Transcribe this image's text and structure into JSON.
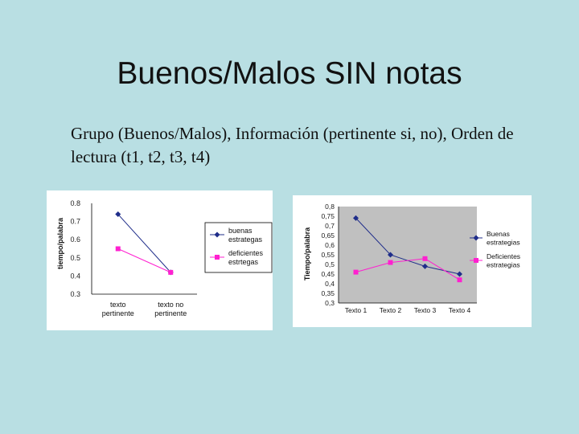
{
  "slide": {
    "title": "Buenos/Malos SIN notas",
    "subtitle": "Grupo (Buenos/Malos), Información (pertinente si, no), Orden de lectura (t1, t2, t3, t4)"
  },
  "colors": {
    "background": "#b9dfe3",
    "plot_area": "#c0c0c0",
    "series1": "#1f2d8a",
    "series2": "#ff20d0"
  },
  "chart_data": [
    {
      "type": "line",
      "title": "",
      "xlabel": "",
      "ylabel": "tiempo/palabra",
      "categories": [
        "texto pertinente",
        "texto no pertinente"
      ],
      "category_lines": [
        [
          "texto",
          "pertinente"
        ],
        [
          "texto no",
          "pertinente"
        ]
      ],
      "ylim": [
        0.3,
        0.8
      ],
      "yticks": [
        "0.3",
        "0.4",
        "0.5",
        "0.6",
        "0.7",
        "0.8"
      ],
      "grid": false,
      "legend_position": "right",
      "series": [
        {
          "name": "buenas estrategas",
          "name_lines": [
            "buenas",
            "estrategas"
          ],
          "values": [
            0.74,
            0.42
          ],
          "color": "#1f2d8a",
          "marker": "diamond"
        },
        {
          "name": "deficientes estrtegas",
          "name_lines": [
            "deficientes",
            "estrtegas"
          ],
          "values": [
            0.55,
            0.42
          ],
          "color": "#ff20d0",
          "marker": "square"
        }
      ]
    },
    {
      "type": "line",
      "title": "",
      "xlabel": "",
      "ylabel": "Tiempo/palabra",
      "categories": [
        "Texto 1",
        "Texto 2",
        "Texto 3",
        "Texto 4"
      ],
      "ylim": [
        0.3,
        0.8
      ],
      "yticks": [
        "0,3",
        "0,35",
        "0,4",
        "0,45",
        "0,5",
        "0,55",
        "0,6",
        "0,65",
        "0,7",
        "0,75",
        "0,8"
      ],
      "grid": false,
      "legend_position": "right",
      "series": [
        {
          "name": "Buenas estrategias",
          "name_lines": [
            "Buenas",
            "estrategias"
          ],
          "values": [
            0.74,
            0.55,
            0.49,
            0.45
          ],
          "color": "#1f2d8a",
          "marker": "diamond"
        },
        {
          "name": "Deficientes estrategias",
          "name_lines": [
            "Deficientes",
            "estrategias"
          ],
          "values": [
            0.46,
            0.51,
            0.53,
            0.42
          ],
          "color": "#ff20d0",
          "marker": "square"
        }
      ]
    }
  ]
}
